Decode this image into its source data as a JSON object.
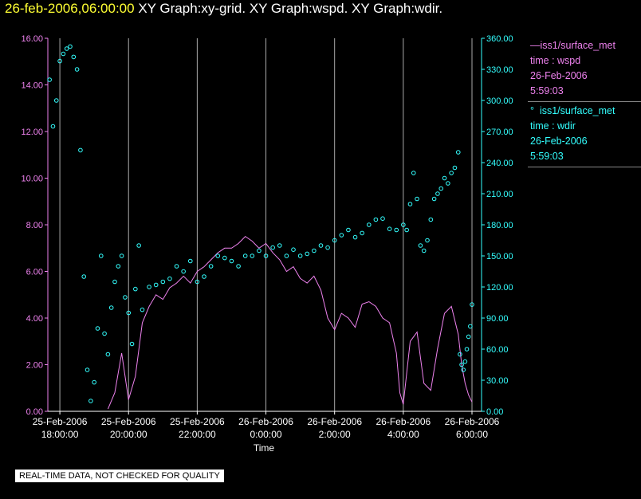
{
  "title": {
    "date": "26-feb-2006,06:00:00",
    "rest": "  XY Graph:xy-grid.  XY Graph:wspd.  XY Graph:wdir."
  },
  "legend": {
    "wspd": {
      "source": "iss1/surface_met",
      "var": "time : wspd",
      "date": "26-Feb-2006",
      "time": "5:59:03"
    },
    "wdir": {
      "source": "iss1/surface_met",
      "var": "time : wdir",
      "date": "26-Feb-2006",
      "time": "5:59:03"
    }
  },
  "footer_note": "REAL-TIME DATA, NOT CHECKED FOR QUALITY",
  "colors": {
    "wspd": "#ee82ee",
    "wdir": "#33ffff",
    "grid": "#aaaaaa",
    "axis": "#ffffff"
  },
  "chart_data": {
    "type": "line",
    "xlabel": "Time",
    "x_range_hours": [
      -6.35,
      6.0
    ],
    "x_ticks": [
      {
        "h": -6,
        "date": "25-Feb-2006",
        "time": "18:00:00"
      },
      {
        "h": -4,
        "date": "25-Feb-2006",
        "time": "20:00:00"
      },
      {
        "h": -2,
        "date": "25-Feb-2006",
        "time": "22:00:00"
      },
      {
        "h": 0,
        "date": "26-Feb-2006",
        "time": "0:00:00"
      },
      {
        "h": 2,
        "date": "26-Feb-2006",
        "time": "2:00:00"
      },
      {
        "h": 4,
        "date": "26-Feb-2006",
        "time": "4:00:00"
      },
      {
        "h": 6,
        "date": "26-Feb-2006",
        "time": "6:00:00"
      }
    ],
    "y_left": {
      "name": "wspd",
      "ylim": [
        0,
        16
      ],
      "ticks": [
        "0.00",
        "2.00",
        "4.00",
        "6.00",
        "8.00",
        "10.00",
        "12.00",
        "14.00",
        "16.00"
      ]
    },
    "y_right": {
      "name": "wdir",
      "ylim": [
        0,
        360
      ],
      "ticks": [
        "0.00",
        "30.00",
        "60.00",
        "90.00",
        "120.00",
        "150.00",
        "180.00",
        "210.00",
        "240.00",
        "270.00",
        "300.00",
        "330.00",
        "360.00"
      ]
    },
    "series": [
      {
        "name": "wspd",
        "style": "line",
        "axis": "left",
        "hours": [
          -4.6,
          -4.4,
          -4.2,
          -4.0,
          -3.8,
          -3.6,
          -3.4,
          -3.2,
          -3.0,
          -2.8,
          -2.6,
          -2.4,
          -2.2,
          -2.0,
          -1.8,
          -1.6,
          -1.4,
          -1.2,
          -1.0,
          -0.8,
          -0.6,
          -0.4,
          -0.2,
          0.0,
          0.2,
          0.4,
          0.6,
          0.8,
          1.0,
          1.2,
          1.4,
          1.6,
          1.8,
          2.0,
          2.2,
          2.4,
          2.6,
          2.8,
          3.0,
          3.2,
          3.4,
          3.6,
          3.8,
          3.9,
          4.0,
          4.2,
          4.4,
          4.6,
          4.8,
          5.0,
          5.2,
          5.4,
          5.6,
          5.7,
          5.8,
          5.9,
          6.0
        ],
        "values": [
          0.1,
          0.8,
          2.5,
          0.5,
          1.5,
          3.8,
          4.5,
          5.0,
          4.8,
          5.3,
          5.5,
          5.8,
          5.5,
          6.0,
          6.2,
          6.5,
          6.8,
          7.0,
          7.0,
          7.2,
          7.5,
          7.3,
          7.0,
          7.2,
          6.8,
          6.5,
          6.0,
          6.2,
          5.7,
          5.5,
          5.8,
          5.2,
          4.0,
          3.5,
          4.2,
          4.0,
          3.6,
          4.6,
          4.7,
          4.5,
          4.0,
          3.8,
          2.5,
          0.8,
          0.3,
          3.0,
          3.4,
          1.2,
          0.9,
          2.7,
          4.2,
          4.5,
          3.3,
          2.0,
          1.2,
          0.7,
          0.4
        ]
      },
      {
        "name": "wdir",
        "style": "scatter",
        "axis": "right",
        "hours": [
          -6.3,
          -6.2,
          -6.1,
          -6.0,
          -5.9,
          -5.8,
          -5.7,
          -5.6,
          -5.5,
          -5.4,
          -5.3,
          -5.2,
          -5.1,
          -5.0,
          -4.9,
          -4.8,
          -4.7,
          -4.6,
          -4.5,
          -4.4,
          -4.3,
          -4.2,
          -4.1,
          -4.0,
          -3.9,
          -3.8,
          -3.7,
          -3.6,
          -3.4,
          -3.2,
          -3.0,
          -2.8,
          -2.6,
          -2.4,
          -2.2,
          -2.0,
          -1.8,
          -1.6,
          -1.4,
          -1.2,
          -1.0,
          -0.8,
          -0.6,
          -0.4,
          -0.2,
          0.0,
          0.2,
          0.4,
          0.6,
          0.8,
          1.0,
          1.2,
          1.4,
          1.6,
          1.8,
          2.0,
          2.2,
          2.4,
          2.6,
          2.8,
          3.0,
          3.2,
          3.4,
          3.6,
          3.8,
          4.0,
          4.1,
          4.2,
          4.3,
          4.4,
          4.5,
          4.6,
          4.7,
          4.8,
          4.9,
          5.0,
          5.1,
          5.2,
          5.3,
          5.4,
          5.5,
          5.6,
          5.65,
          5.7,
          5.75,
          5.8,
          5.85,
          5.9,
          5.95,
          6.0
        ],
        "values": [
          320,
          275,
          300,
          338,
          345,
          350,
          352,
          342,
          330,
          252,
          130,
          40,
          10,
          28,
          80,
          150,
          75,
          55,
          100,
          125,
          140,
          150,
          110,
          95,
          65,
          118,
          160,
          98,
          120,
          122,
          125,
          128,
          140,
          135,
          145,
          125,
          130,
          140,
          150,
          148,
          145,
          140,
          150,
          150,
          155,
          150,
          158,
          160,
          150,
          156,
          150,
          152,
          155,
          160,
          158,
          165,
          170,
          175,
          168,
          172,
          180,
          185,
          186,
          176,
          175,
          180,
          175,
          200,
          230,
          205,
          160,
          155,
          165,
          185,
          205,
          210,
          215,
          225,
          220,
          230,
          235,
          250,
          55,
          45,
          40,
          48,
          60,
          72,
          82,
          103
        ]
      }
    ]
  }
}
